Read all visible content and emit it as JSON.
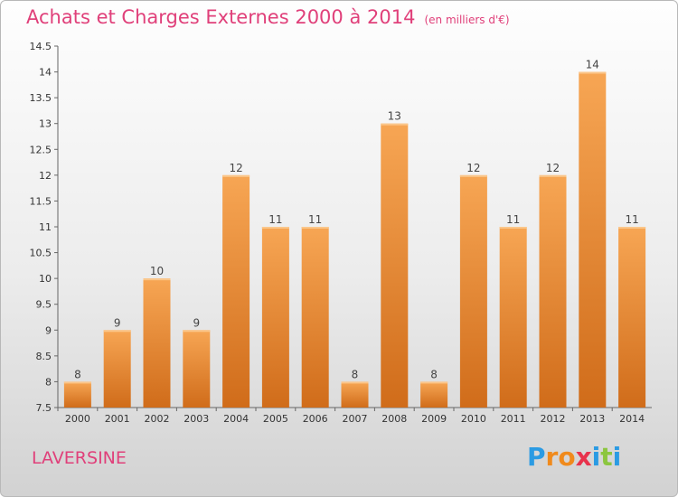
{
  "title": "Achats et Charges Externes 2000 à 2014",
  "subtitle": "(en milliers d'€)",
  "place": "LAVERSINE",
  "logo": {
    "letters": [
      "P",
      "r",
      "o",
      "x",
      "i",
      "t",
      "i"
    ],
    "colors": [
      "#2b9be3",
      "#f08a1c",
      "#f08a1c",
      "#e8324c",
      "#2b9be3",
      "#8cc63f",
      "#2b9be3"
    ]
  },
  "colors": {
    "bar_top": "#f7a654",
    "bar_bottom": "#d06c1a",
    "title": "#e0407a"
  },
  "chart_data": {
    "type": "bar",
    "categories": [
      "2000",
      "2001",
      "2002",
      "2003",
      "2004",
      "2005",
      "2006",
      "2007",
      "2008",
      "2009",
      "2010",
      "2011",
      "2012",
      "2013",
      "2014"
    ],
    "values": [
      8,
      9,
      10,
      9,
      12,
      11,
      11,
      8,
      13,
      8,
      12,
      11,
      12,
      14,
      11
    ],
    "title": "Achats et Charges Externes 2000 à 2014",
    "ylim": [
      7.5,
      14.5
    ],
    "yticks": [
      "7.5",
      "8",
      "8.5",
      "9",
      "9.5",
      "10",
      "10.5",
      "11",
      "11.5",
      "12",
      "12.5",
      "13",
      "13.5",
      "14",
      "14.5"
    ],
    "grid": false,
    "legend": "none"
  }
}
